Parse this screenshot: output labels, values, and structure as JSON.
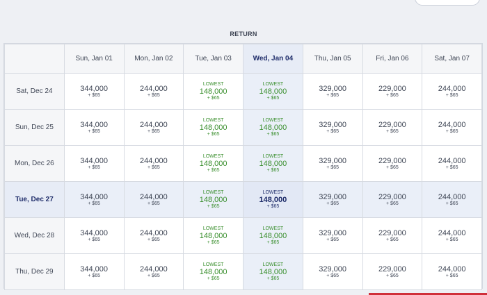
{
  "header": {
    "return_label": "RETURN"
  },
  "columns": [
    "Sun, Jan 01",
    "Mon, Jan 02",
    "Tue, Jan 03",
    "Wed, Jan 04",
    "Thu, Jan 05",
    "Fri, Jan 06",
    "Sat, Jan 07"
  ],
  "selected_column_index": 3,
  "selected_row_index": 3,
  "rows": [
    {
      "label": "Sat, Dec 24",
      "cells": [
        {
          "price": "344,000",
          "tax": "+ $65",
          "lowest": ""
        },
        {
          "price": "244,000",
          "tax": "+ $65",
          "lowest": ""
        },
        {
          "price": "148,000",
          "tax": "+ $65",
          "lowest": "LOWEST"
        },
        {
          "price": "148,000",
          "tax": "+ $65",
          "lowest": "LOWEST"
        },
        {
          "price": "329,000",
          "tax": "+ $65",
          "lowest": ""
        },
        {
          "price": "229,000",
          "tax": "+ $65",
          "lowest": ""
        },
        {
          "price": "244,000",
          "tax": "+ $65",
          "lowest": ""
        }
      ]
    },
    {
      "label": "Sun, Dec 25",
      "cells": [
        {
          "price": "344,000",
          "tax": "+ $65",
          "lowest": ""
        },
        {
          "price": "244,000",
          "tax": "+ $65",
          "lowest": ""
        },
        {
          "price": "148,000",
          "tax": "+ $65",
          "lowest": "LOWEST"
        },
        {
          "price": "148,000",
          "tax": "+ $65",
          "lowest": "LOWEST"
        },
        {
          "price": "329,000",
          "tax": "+ $65",
          "lowest": ""
        },
        {
          "price": "229,000",
          "tax": "+ $65",
          "lowest": ""
        },
        {
          "price": "244,000",
          "tax": "+ $65",
          "lowest": ""
        }
      ]
    },
    {
      "label": "Mon, Dec 26",
      "cells": [
        {
          "price": "344,000",
          "tax": "+ $65",
          "lowest": ""
        },
        {
          "price": "244,000",
          "tax": "+ $65",
          "lowest": ""
        },
        {
          "price": "148,000",
          "tax": "+ $65",
          "lowest": "LOWEST"
        },
        {
          "price": "148,000",
          "tax": "+ $65",
          "lowest": "LOWEST"
        },
        {
          "price": "329,000",
          "tax": "+ $65",
          "lowest": ""
        },
        {
          "price": "229,000",
          "tax": "+ $65",
          "lowest": ""
        },
        {
          "price": "244,000",
          "tax": "+ $65",
          "lowest": ""
        }
      ]
    },
    {
      "label": "Tue, Dec 27",
      "cells": [
        {
          "price": "344,000",
          "tax": "+ $65",
          "lowest": ""
        },
        {
          "price": "244,000",
          "tax": "+ $65",
          "lowest": ""
        },
        {
          "price": "148,000",
          "tax": "+ $65",
          "lowest": "LOWEST"
        },
        {
          "price": "148,000",
          "tax": "+ $65",
          "lowest": "LOWEST"
        },
        {
          "price": "329,000",
          "tax": "+ $65",
          "lowest": ""
        },
        {
          "price": "229,000",
          "tax": "+ $65",
          "lowest": ""
        },
        {
          "price": "244,000",
          "tax": "+ $65",
          "lowest": ""
        }
      ]
    },
    {
      "label": "Wed, Dec 28",
      "cells": [
        {
          "price": "344,000",
          "tax": "+ $65",
          "lowest": ""
        },
        {
          "price": "244,000",
          "tax": "+ $65",
          "lowest": ""
        },
        {
          "price": "148,000",
          "tax": "+ $65",
          "lowest": "LOWEST"
        },
        {
          "price": "148,000",
          "tax": "+ $65",
          "lowest": "LOWEST"
        },
        {
          "price": "329,000",
          "tax": "+ $65",
          "lowest": ""
        },
        {
          "price": "229,000",
          "tax": "+ $65",
          "lowest": ""
        },
        {
          "price": "244,000",
          "tax": "+ $65",
          "lowest": ""
        }
      ]
    },
    {
      "label": "Thu, Dec 29",
      "cells": [
        {
          "price": "344,000",
          "tax": "+ $65",
          "lowest": ""
        },
        {
          "price": "244,000",
          "tax": "+ $65",
          "lowest": ""
        },
        {
          "price": "148,000",
          "tax": "+ $65",
          "lowest": "LOWEST"
        },
        {
          "price": "148,000",
          "tax": "+ $65",
          "lowest": "LOWEST"
        },
        {
          "price": "329,000",
          "tax": "+ $65",
          "lowest": ""
        },
        {
          "price": "229,000",
          "tax": "+ $65",
          "lowest": ""
        },
        {
          "price": "244,000",
          "tax": "+ $65",
          "lowest": ""
        }
      ]
    }
  ],
  "colors": {
    "accent_navy": "#1f2d6a",
    "lowest_green": "#3a8f2e",
    "selected_bg": "#e7ecf6",
    "footer_red": "#d0303a"
  }
}
